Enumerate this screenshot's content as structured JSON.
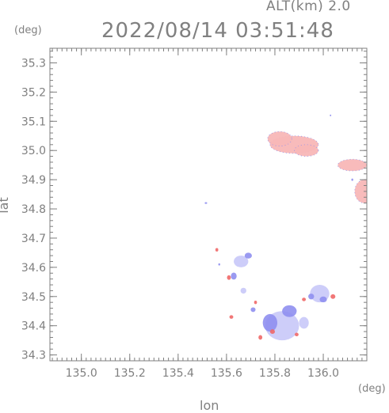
{
  "header": {
    "alt_label": "ALT(km) 2.0",
    "datetime": "2022/08/14 03:51:48"
  },
  "axes": {
    "y_unit": "(deg)",
    "x_unit": "(deg)",
    "xlabel": "lon",
    "ylabel": "lat"
  },
  "colors": {
    "axis": "#7f7f7f",
    "text": "#808080",
    "blue": "#8f8ff0",
    "blue_light": "#c8c8f8",
    "pink": "#f8b8b8",
    "red": "#f06868"
  },
  "chart_data": {
    "type": "heatmap",
    "title": "2022/08/14 03:51:48",
    "subtitle": "ALT(km) 2.0",
    "xlabel": "lon",
    "ylabel": "lat",
    "x_unit": "(deg)",
    "y_unit": "(deg)",
    "xlim": [
      134.87,
      136.18
    ],
    "ylim": [
      34.28,
      35.35
    ],
    "xticks": [
      135.0,
      135.2,
      135.4,
      135.6,
      135.8,
      136.0
    ],
    "yticks": [
      34.3,
      34.4,
      34.5,
      34.6,
      34.7,
      34.8,
      34.9,
      35.0,
      35.1,
      35.2,
      35.3
    ],
    "xtick_labels": [
      "135.0",
      "135.2",
      "135.4",
      "135.6",
      "135.8",
      "136.0"
    ],
    "ytick_labels": [
      "34.3",
      "34.4",
      "34.5",
      "34.6",
      "34.7",
      "34.8",
      "34.9",
      "35.0",
      "35.1",
      "35.2",
      "35.3"
    ],
    "grid": false,
    "echoes": [
      {
        "lon": 135.88,
        "lat": 35.02,
        "rlon": 0.1,
        "rlat": 0.03,
        "color": "pink"
      },
      {
        "lon": 135.82,
        "lat": 35.04,
        "rlon": 0.05,
        "rlat": 0.025,
        "color": "pink"
      },
      {
        "lon": 135.93,
        "lat": 35.0,
        "rlon": 0.05,
        "rlat": 0.02,
        "color": "pink"
      },
      {
        "lon": 136.12,
        "lat": 34.95,
        "rlon": 0.06,
        "rlat": 0.02,
        "color": "pink"
      },
      {
        "lon": 136.17,
        "lat": 34.86,
        "rlon": 0.04,
        "rlat": 0.04,
        "color": "pink"
      },
      {
        "lon": 135.66,
        "lat": 34.62,
        "rlon": 0.03,
        "rlat": 0.02,
        "color": "blue_light"
      },
      {
        "lon": 135.69,
        "lat": 34.64,
        "rlon": 0.015,
        "rlat": 0.01,
        "color": "blue"
      },
      {
        "lon": 135.63,
        "lat": 34.57,
        "rlon": 0.012,
        "rlat": 0.012,
        "color": "blue"
      },
      {
        "lon": 135.61,
        "lat": 34.565,
        "rlon": 0.008,
        "rlat": 0.008,
        "color": "red"
      },
      {
        "lon": 135.67,
        "lat": 34.52,
        "rlon": 0.012,
        "rlat": 0.01,
        "color": "blue_light"
      },
      {
        "lon": 135.56,
        "lat": 34.66,
        "rlon": 0.006,
        "rlat": 0.006,
        "color": "red"
      },
      {
        "lon": 135.72,
        "lat": 34.48,
        "rlon": 0.006,
        "rlat": 0.006,
        "color": "red"
      },
      {
        "lon": 135.71,
        "lat": 34.455,
        "rlon": 0.01,
        "rlat": 0.008,
        "color": "blue"
      },
      {
        "lon": 135.83,
        "lat": 34.4,
        "rlon": 0.07,
        "rlat": 0.05,
        "color": "blue_light"
      },
      {
        "lon": 135.78,
        "lat": 34.41,
        "rlon": 0.03,
        "rlat": 0.03,
        "color": "blue"
      },
      {
        "lon": 135.86,
        "lat": 34.45,
        "rlon": 0.03,
        "rlat": 0.02,
        "color": "blue"
      },
      {
        "lon": 135.79,
        "lat": 34.38,
        "rlon": 0.01,
        "rlat": 0.008,
        "color": "red"
      },
      {
        "lon": 135.74,
        "lat": 34.36,
        "rlon": 0.008,
        "rlat": 0.008,
        "color": "red"
      },
      {
        "lon": 135.89,
        "lat": 34.37,
        "rlon": 0.008,
        "rlat": 0.006,
        "color": "red"
      },
      {
        "lon": 135.92,
        "lat": 34.41,
        "rlon": 0.02,
        "rlat": 0.02,
        "color": "blue_light"
      },
      {
        "lon": 135.985,
        "lat": 34.51,
        "rlon": 0.04,
        "rlat": 0.03,
        "color": "blue_light"
      },
      {
        "lon": 136.0,
        "lat": 34.49,
        "rlon": 0.015,
        "rlat": 0.01,
        "color": "blue"
      },
      {
        "lon": 136.04,
        "lat": 34.5,
        "rlon": 0.01,
        "rlat": 0.008,
        "color": "red"
      },
      {
        "lon": 135.95,
        "lat": 34.5,
        "rlon": 0.012,
        "rlat": 0.01,
        "color": "blue"
      },
      {
        "lon": 135.92,
        "lat": 34.49,
        "rlon": 0.008,
        "rlat": 0.006,
        "color": "red"
      },
      {
        "lon": 135.62,
        "lat": 34.43,
        "rlon": 0.008,
        "rlat": 0.006,
        "color": "red"
      },
      {
        "lon": 135.515,
        "lat": 34.82,
        "rlon": 0.005,
        "rlat": 0.003,
        "color": "blue"
      },
      {
        "lon": 136.03,
        "lat": 35.12,
        "rlon": 0.003,
        "rlat": 0.003,
        "color": "blue"
      },
      {
        "lon": 136.12,
        "lat": 34.9,
        "rlon": 0.004,
        "rlat": 0.004,
        "color": "blue"
      },
      {
        "lon": 135.57,
        "lat": 34.61,
        "rlon": 0.004,
        "rlat": 0.004,
        "color": "blue"
      }
    ]
  }
}
